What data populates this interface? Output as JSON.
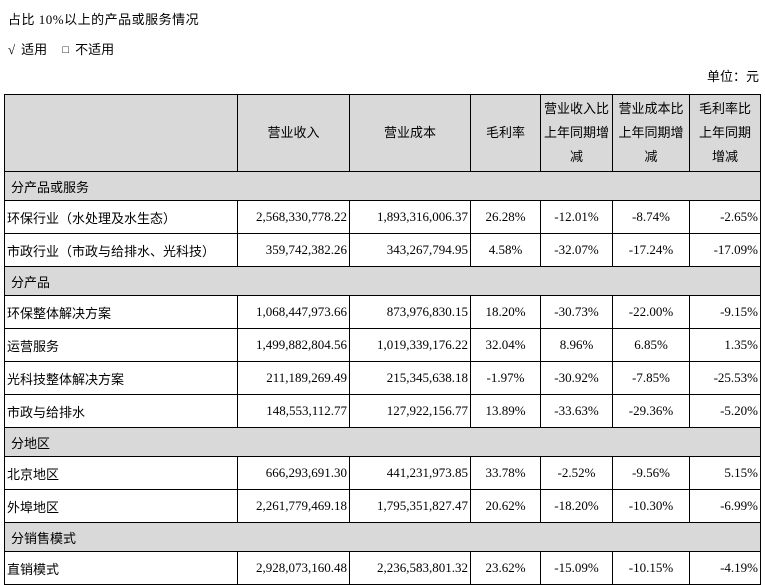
{
  "page": {
    "title": "占比 10%以上的产品或服务情况",
    "applicable": {
      "mark": "√",
      "label": "适用"
    },
    "not_applicable": {
      "mark": "□",
      "label": "不适用"
    },
    "unit_label": "单位：元"
  },
  "table": {
    "columns": [
      "",
      "营业收入",
      "营业成本",
      "毛利率",
      "营业收入比上年同期增减",
      "营业成本比上年同期增减",
      "毛利率比上年同期增减"
    ],
    "sections": [
      {
        "label": "分产品或服务",
        "rows": [
          {
            "name": "环保行业（水处理及水生态）",
            "values": [
              "2,568,330,778.22",
              "1,893,316,006.37",
              "26.28%",
              "-12.01%",
              "-8.74%",
              "-2.65%"
            ]
          },
          {
            "name": "市政行业（市政与给排水、光科技）",
            "values": [
              "359,742,382.26",
              "343,267,794.95",
              "4.58%",
              "-32.07%",
              "-17.24%",
              "-17.09%"
            ]
          }
        ]
      },
      {
        "label": "分产品",
        "rows": [
          {
            "name": "环保整体解决方案",
            "values": [
              "1,068,447,973.66",
              "873,976,830.15",
              "18.20%",
              "-30.73%",
              "-22.00%",
              "-9.15%"
            ]
          },
          {
            "name": "运营服务",
            "values": [
              "1,499,882,804.56",
              "1,019,339,176.22",
              "32.04%",
              "8.96%",
              "6.85%",
              "1.35%"
            ]
          },
          {
            "name": "光科技整体解决方案",
            "values": [
              "211,189,269.49",
              "215,345,638.18",
              "-1.97%",
              "-30.92%",
              "-7.85%",
              "-25.53%"
            ]
          },
          {
            "name": "市政与给排水",
            "values": [
              "148,553,112.77",
              "127,922,156.77",
              "13.89%",
              "-33.63%",
              "-29.36%",
              "-5.20%"
            ]
          }
        ]
      },
      {
        "label": "分地区",
        "rows": [
          {
            "name": "北京地区",
            "values": [
              "666,293,691.30",
              "441,231,973.85",
              "33.78%",
              "-2.52%",
              "-9.56%",
              "5.15%"
            ]
          },
          {
            "name": "外埠地区",
            "values": [
              "2,261,779,469.18",
              "1,795,351,827.47",
              "20.62%",
              "-18.20%",
              "-10.30%",
              "-6.99%"
            ]
          }
        ]
      },
      {
        "label": "分销售模式",
        "rows": [
          {
            "name": "直销模式",
            "values": [
              "2,928,073,160.48",
              "2,236,583,801.32",
              "23.62%",
              "-15.09%",
              "-10.15%",
              "-4.19%"
            ]
          }
        ]
      }
    ]
  },
  "colors": {
    "header_bg": "#d9d9d9",
    "border": "#000000"
  }
}
